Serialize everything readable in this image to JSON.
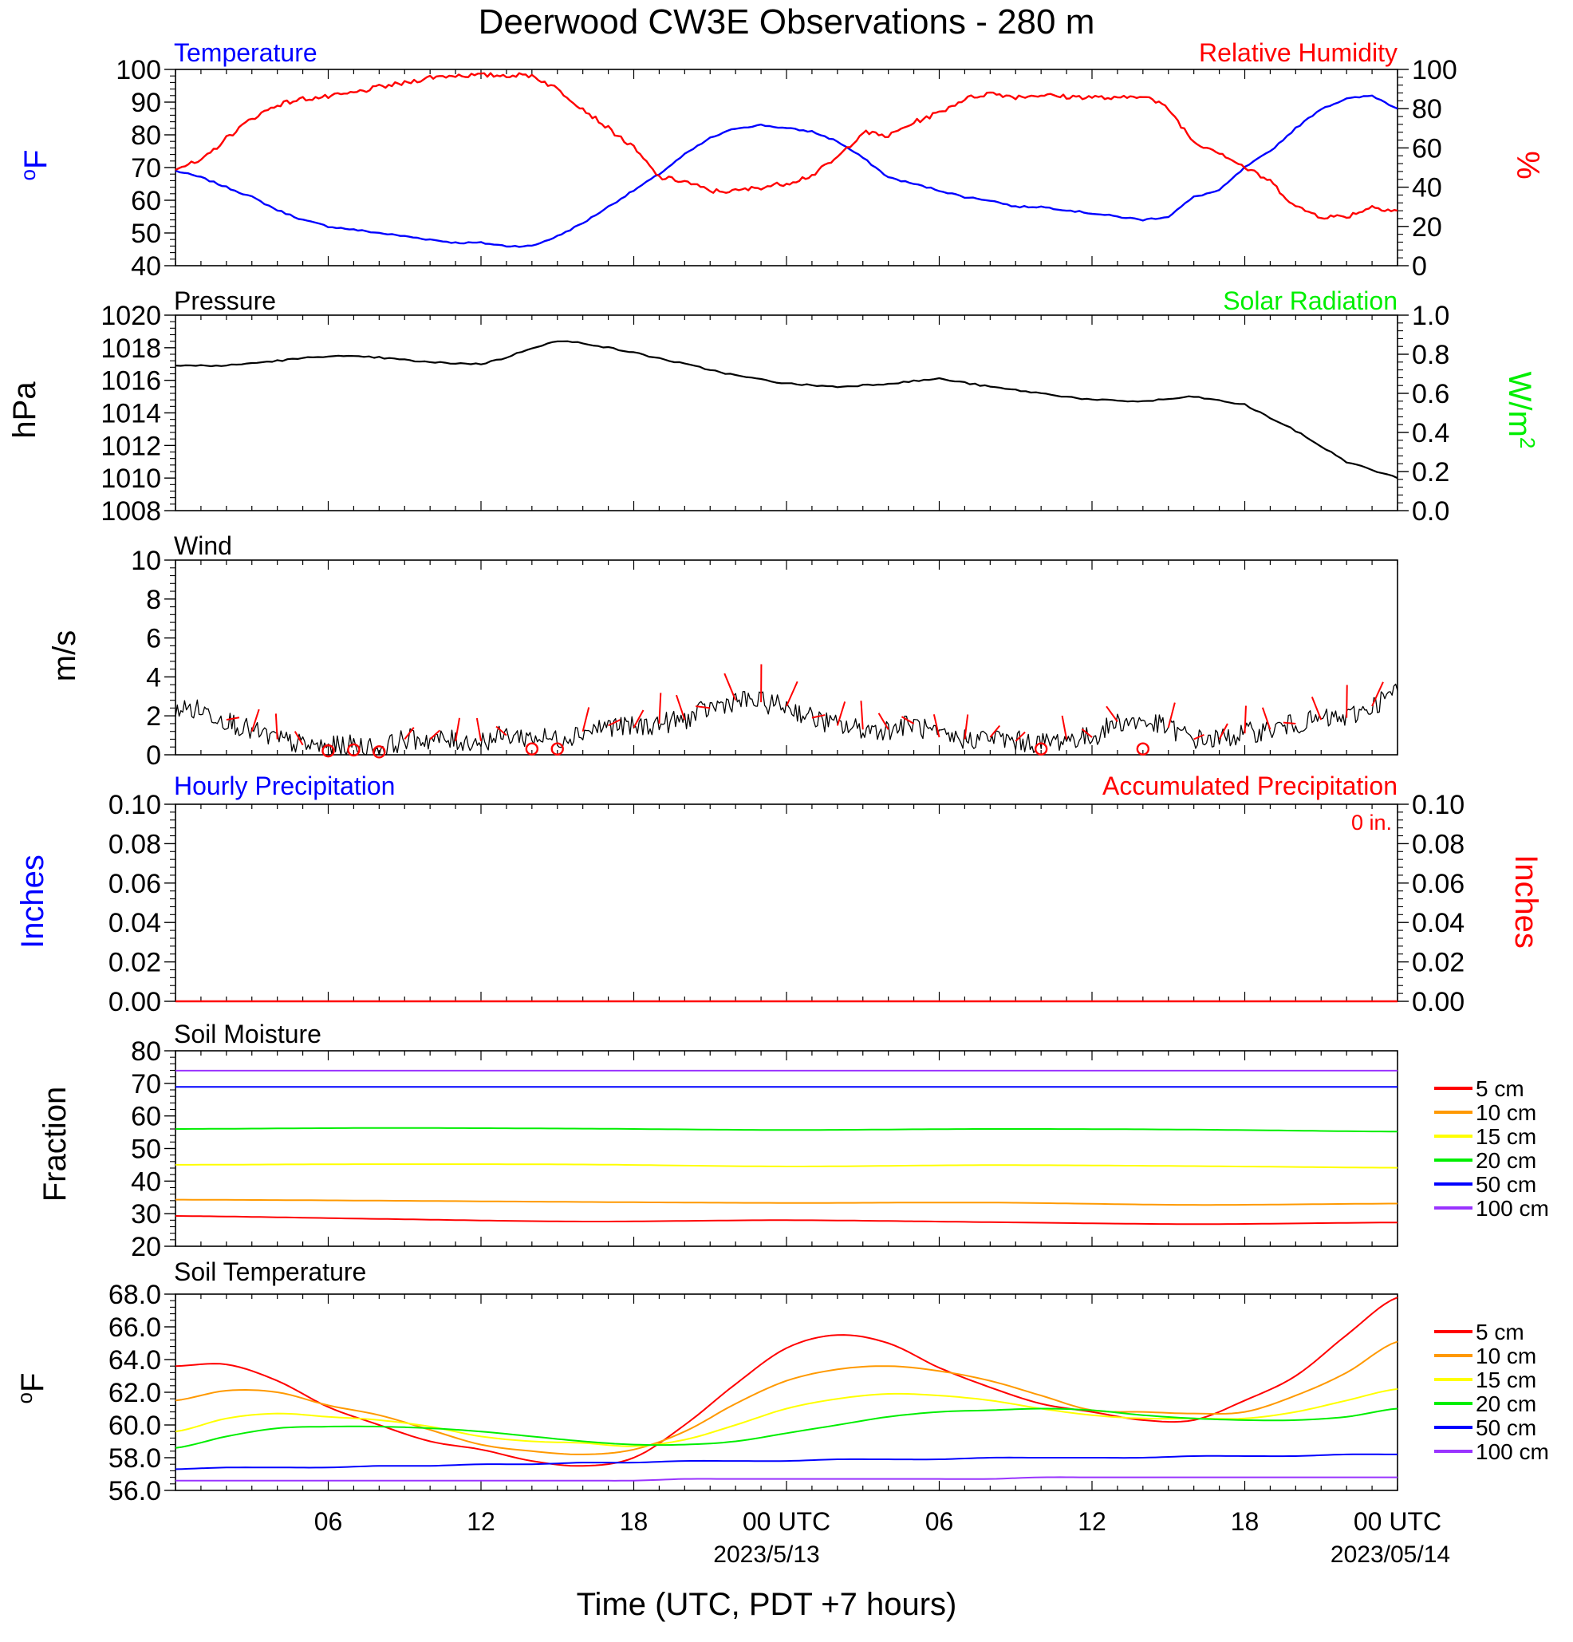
{
  "title": "Deerwood CW3E Observations - 280 m",
  "x_axis": {
    "label": "Time (UTC, PDT +7 hours)",
    "ticks": [
      "06",
      "12",
      "18",
      "00 UTC",
      "06",
      "12",
      "18",
      "00 UTC"
    ],
    "dates": [
      "2023/5/13",
      "2023/05/14"
    ]
  },
  "chart_data": [
    {
      "type": "line",
      "left_title": "Temperature",
      "right_title": "Relative Humidity",
      "ylabel": "oF",
      "y2label": "%",
      "ylim": [
        40,
        100
      ],
      "y2lim": [
        0,
        100
      ],
      "left_ticks": [
        "40",
        "50",
        "60",
        "70",
        "80",
        "90",
        "100"
      ],
      "right_ticks": [
        "0",
        "20",
        "40",
        "60",
        "80",
        "100"
      ],
      "colors": {
        "temperature": "#0000ff",
        "humidity": "#ff0000"
      },
      "x_hours": [
        0,
        1,
        2,
        3,
        4,
        5,
        6,
        7,
        8,
        9,
        10,
        11,
        12,
        13,
        14,
        15,
        16,
        17,
        18,
        19,
        20,
        21,
        22,
        23,
        24,
        25,
        26,
        27,
        28,
        29,
        30,
        31,
        32,
        33,
        34,
        35,
        36,
        37,
        38,
        39,
        40,
        41,
        42,
        43,
        44,
        45,
        46,
        47,
        48
      ],
      "series": [
        {
          "name": "Temperature",
          "values": [
            69,
            67,
            64,
            61,
            57,
            54,
            52,
            51,
            50,
            49,
            48,
            47,
            47,
            46,
            46,
            49,
            53,
            58,
            63,
            68,
            74,
            79,
            82,
            83,
            82,
            81,
            78,
            73,
            67,
            65,
            63,
            61,
            60,
            58,
            58,
            57,
            56,
            55,
            54,
            55,
            61,
            63,
            70,
            75,
            82,
            88,
            91,
            92,
            88
          ]
        },
        {
          "name": "Relative Humidity",
          "values": [
            50,
            53,
            65,
            75,
            82,
            85,
            86,
            88,
            91,
            93,
            96,
            97,
            97,
            97,
            97,
            90,
            80,
            70,
            60,
            45,
            43,
            38,
            38,
            40,
            42,
            46,
            55,
            68,
            66,
            73,
            78,
            85,
            88,
            86,
            87,
            86,
            86,
            85,
            87,
            80,
            63,
            58,
            50,
            43,
            30,
            25,
            25,
            30,
            28
          ]
        }
      ]
    },
    {
      "type": "line",
      "left_title": "Pressure",
      "right_title": "Solar Radiation",
      "ylabel": "hPa",
      "y2label": "W/m2",
      "ylim": [
        1008,
        1020
      ],
      "y2lim": [
        0.0,
        1.0
      ],
      "left_ticks": [
        "1008",
        "1010",
        "1012",
        "1014",
        "1016",
        "1018",
        "1020"
      ],
      "right_ticks": [
        "0.0",
        "0.2",
        "0.4",
        "0.6",
        "0.8",
        "1.0"
      ],
      "colors": {
        "pressure": "#000000",
        "solar": "#00ff00"
      },
      "x_hours": [
        0,
        2,
        4,
        6,
        8,
        10,
        12,
        13,
        14,
        15,
        16,
        18,
        20,
        22,
        24,
        26,
        28,
        30,
        32,
        34,
        36,
        38,
        40,
        42,
        44,
        46,
        48
      ],
      "series": [
        {
          "name": "Pressure",
          "values": [
            1016.9,
            1016.9,
            1017.2,
            1017.5,
            1017.4,
            1017.1,
            1017.0,
            1017.4,
            1018.0,
            1018.4,
            1018.3,
            1017.7,
            1017.0,
            1016.3,
            1015.8,
            1015.6,
            1015.8,
            1016.1,
            1015.6,
            1015.2,
            1014.8,
            1014.7,
            1015.0,
            1014.5,
            1012.9,
            1011.0,
            1010.0
          ]
        }
      ]
    },
    {
      "type": "line",
      "left_title": "Wind",
      "ylabel": "m/s",
      "ylim": [
        0,
        10
      ],
      "left_ticks": [
        "0",
        "2",
        "4",
        "6",
        "8",
        "10"
      ],
      "colors": {
        "speed": "#000000",
        "barbs": "#ff0000"
      },
      "x_hours": [
        0,
        1,
        2,
        3,
        4,
        5,
        6,
        7,
        8,
        9,
        10,
        11,
        12,
        13,
        14,
        15,
        16,
        17,
        18,
        19,
        20,
        21,
        22,
        23,
        24,
        25,
        26,
        27,
        28,
        29,
        30,
        31,
        32,
        33,
        34,
        35,
        36,
        37,
        38,
        39,
        40,
        41,
        42,
        43,
        44,
        45,
        46,
        47,
        48
      ],
      "series": [
        {
          "name": "Wind speed",
          "values": [
            2.4,
            2.3,
            1.8,
            1.2,
            0.8,
            0.5,
            0.4,
            0.5,
            0.3,
            0.8,
            0.8,
            0.7,
            0.7,
            1.0,
            0.9,
            0.8,
            1.2,
            1.5,
            1.4,
            1.6,
            1.8,
            2.4,
            2.8,
            2.7,
            2.5,
            1.9,
            1.5,
            1.3,
            1.3,
            1.6,
            0.9,
            0.8,
            0.9,
            0.7,
            0.6,
            0.8,
            0.9,
            1.7,
            1.7,
            1.4,
            0.8,
            0.8,
            1.1,
            1.3,
            1.6,
            1.8,
            1.9,
            2.5,
            3.3
          ]
        }
      ]
    },
    {
      "type": "line",
      "left_title": "Hourly Precipitation",
      "right_title": "Accumulated Precipitation",
      "total_label": "0 in.",
      "ylabel": "Inches",
      "y2label": "Inches",
      "ylim": [
        0.0,
        0.1
      ],
      "y2lim": [
        0.0,
        0.1
      ],
      "left_ticks": [
        "0.00",
        "0.02",
        "0.04",
        "0.06",
        "0.08",
        "0.10"
      ],
      "right_ticks": [
        "0.00",
        "0.02",
        "0.04",
        "0.06",
        "0.08",
        "0.10"
      ],
      "colors": {
        "hourly": "#0000ff",
        "accumulated": "#ff0000"
      },
      "series": [
        {
          "name": "Accumulated Precipitation",
          "values": [
            0,
            0
          ]
        }
      ]
    },
    {
      "type": "line",
      "left_title": "Soil Moisture",
      "ylabel": "Fraction",
      "ylim": [
        20,
        80
      ],
      "left_ticks": [
        "20",
        "30",
        "40",
        "50",
        "60",
        "70",
        "80"
      ],
      "x_hours": [
        0,
        8,
        16,
        24,
        32,
        40,
        48
      ],
      "series": [
        {
          "name": "5 cm",
          "color": "#ff0000",
          "values": [
            29.3,
            28.4,
            27.6,
            28.0,
            27.4,
            26.8,
            27.3
          ]
        },
        {
          "name": "10 cm",
          "color": "#ff9900",
          "values": [
            34.3,
            34.0,
            33.6,
            33.3,
            33.4,
            32.7,
            33.1
          ]
        },
        {
          "name": "15 cm",
          "color": "#ffff00",
          "values": [
            45.0,
            45.2,
            45.1,
            44.5,
            44.9,
            44.6,
            44.1
          ]
        },
        {
          "name": "20 cm",
          "color": "#00ee00",
          "values": [
            56.0,
            56.3,
            56.1,
            55.7,
            56.0,
            55.8,
            55.2
          ]
        },
        {
          "name": "50 cm",
          "color": "#0000ff",
          "values": [
            68.9,
            68.9,
            68.9,
            68.9,
            68.9,
            68.9,
            68.9
          ]
        },
        {
          "name": "100 cm",
          "color": "#9933ff",
          "values": [
            73.9,
            73.9,
            73.9,
            73.9,
            73.9,
            73.9,
            73.9
          ]
        }
      ]
    },
    {
      "type": "line",
      "left_title": "Soil Temperature",
      "ylabel": "oF",
      "ylim": [
        56.0,
        68.0
      ],
      "left_ticks": [
        "56.0",
        "58.0",
        "60.0",
        "62.0",
        "64.0",
        "66.0",
        "68.0"
      ],
      "x_hours": [
        0,
        2,
        4,
        6,
        8,
        10,
        12,
        14,
        16,
        18,
        20,
        22,
        24,
        26,
        28,
        30,
        32,
        34,
        36,
        38,
        40,
        42,
        44,
        46,
        48
      ],
      "series": [
        {
          "name": "5 cm",
          "color": "#ff0000",
          "values": [
            63.6,
            63.7,
            62.7,
            61.1,
            60.0,
            59.0,
            58.5,
            57.8,
            57.5,
            58.0,
            60.0,
            62.5,
            64.7,
            65.5,
            65.0,
            63.5,
            62.3,
            61.3,
            60.8,
            60.3,
            60.3,
            61.5,
            63.0,
            65.5,
            67.8
          ]
        },
        {
          "name": "10 cm",
          "color": "#ff9900",
          "values": [
            61.5,
            62.1,
            62.0,
            61.2,
            60.6,
            59.7,
            58.8,
            58.4,
            58.2,
            58.5,
            59.6,
            61.3,
            62.7,
            63.4,
            63.6,
            63.3,
            62.7,
            61.8,
            60.9,
            60.8,
            60.7,
            60.8,
            61.8,
            63.2,
            65.1
          ]
        },
        {
          "name": "15 cm",
          "color": "#ffff00",
          "values": [
            59.6,
            60.4,
            60.7,
            60.5,
            60.3,
            59.9,
            59.3,
            59.0,
            58.9,
            58.7,
            59.1,
            60.0,
            61.0,
            61.6,
            61.9,
            61.8,
            61.5,
            61.0,
            60.6,
            60.4,
            60.4,
            60.4,
            60.8,
            61.5,
            62.2
          ]
        },
        {
          "name": "20 cm",
          "color": "#00ee00",
          "values": [
            58.6,
            59.3,
            59.8,
            59.9,
            59.9,
            59.8,
            59.6,
            59.3,
            59.0,
            58.8,
            58.8,
            59.0,
            59.5,
            60.0,
            60.5,
            60.8,
            60.9,
            61.0,
            60.9,
            60.6,
            60.4,
            60.3,
            60.3,
            60.5,
            61.0
          ]
        },
        {
          "name": "50 cm",
          "color": "#0000ff",
          "values": [
            57.3,
            57.4,
            57.4,
            57.4,
            57.5,
            57.5,
            57.6,
            57.6,
            57.7,
            57.7,
            57.8,
            57.8,
            57.8,
            57.9,
            57.9,
            57.9,
            58.0,
            58.0,
            58.0,
            58.0,
            58.1,
            58.1,
            58.1,
            58.2,
            58.2
          ]
        },
        {
          "name": "100 cm",
          "color": "#9933ff",
          "values": [
            56.6,
            56.6,
            56.6,
            56.6,
            56.6,
            56.6,
            56.6,
            56.6,
            56.6,
            56.6,
            56.7,
            56.7,
            56.7,
            56.7,
            56.7,
            56.7,
            56.7,
            56.8,
            56.8,
            56.8,
            56.8,
            56.8,
            56.8,
            56.8,
            56.8
          ]
        }
      ]
    }
  ]
}
